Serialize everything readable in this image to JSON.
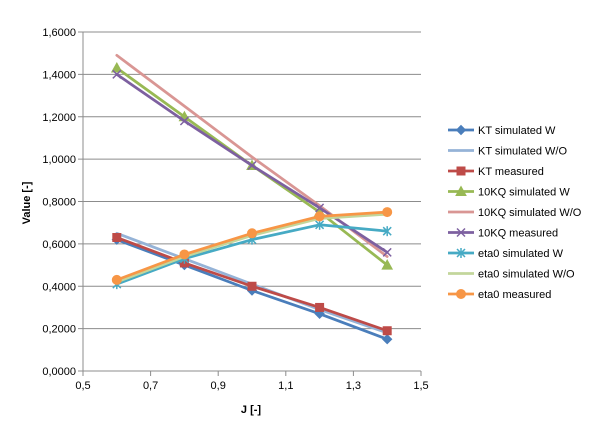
{
  "chart_data": {
    "type": "line",
    "xlabel": "J [-]",
    "ylabel": "Value [-]",
    "xlim": [
      0.5,
      1.5
    ],
    "ylim": [
      0,
      1.6
    ],
    "x_ticks": [
      "0,5",
      "0,7",
      "0,9",
      "1,1",
      "1,3",
      "1,5"
    ],
    "y_ticks": [
      "0,0000",
      "0,2000",
      "0,4000",
      "0,6000",
      "0,8000",
      "1,0000",
      "1,2000",
      "1,4000",
      "1,6000"
    ],
    "grid": "horizontal",
    "legend_position": "right",
    "x": [
      0.6,
      0.8,
      1.0,
      1.2,
      1.4
    ],
    "series": [
      {
        "name": "KT simulated W",
        "values": [
          0.62,
          0.5,
          0.38,
          0.27,
          0.15
        ],
        "color": "#4a7ebb",
        "marker": "diamond"
      },
      {
        "name": "KT simulated W/O",
        "values": [
          0.65,
          0.53,
          0.41,
          0.29,
          0.18
        ],
        "color": "#95b3d7",
        "marker": "none"
      },
      {
        "name": "KT measured",
        "values": [
          0.63,
          0.51,
          0.4,
          0.3,
          0.19
        ],
        "color": "#be4b48",
        "marker": "square"
      },
      {
        "name": "10KQ simulated W",
        "values": [
          1.43,
          1.2,
          0.97,
          0.75,
          0.5
        ],
        "color": "#98b954",
        "marker": "triangle"
      },
      {
        "name": "10KQ simulated W/O",
        "values": [
          1.49,
          1.25,
          1.01,
          0.78,
          0.54
        ],
        "color": "#d99694",
        "marker": "none"
      },
      {
        "name": "10KQ measured",
        "values": [
          1.4,
          1.18,
          0.97,
          0.77,
          0.56
        ],
        "color": "#7d60a0",
        "marker": "x"
      },
      {
        "name": "eta0 simulated W",
        "values": [
          0.41,
          0.53,
          0.62,
          0.69,
          0.66
        ],
        "color": "#46aac4",
        "marker": "star"
      },
      {
        "name": "eta0 simulated W/O",
        "values": [
          0.42,
          0.54,
          0.64,
          0.72,
          0.74
        ],
        "color": "#c3d69b",
        "marker": "none"
      },
      {
        "name": "eta0 measured",
        "values": [
          0.43,
          0.55,
          0.65,
          0.73,
          0.75
        ],
        "color": "#f79646",
        "marker": "circle"
      }
    ]
  }
}
